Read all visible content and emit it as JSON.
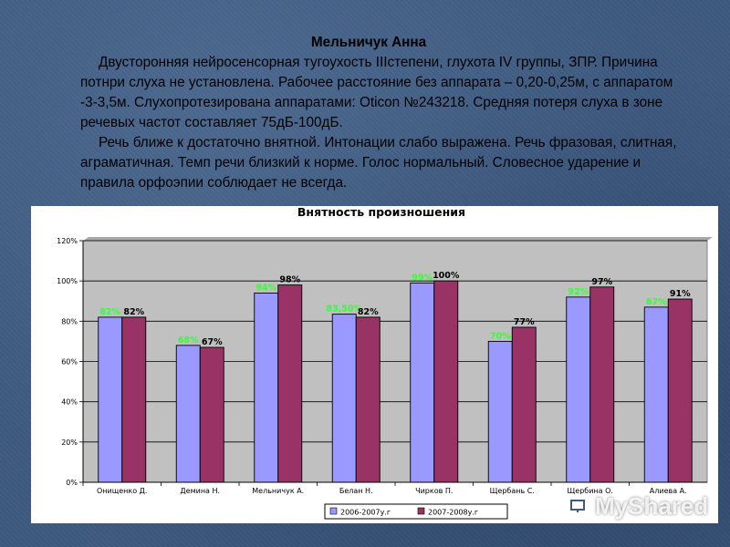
{
  "slide": {
    "name": "Мельничук Анна",
    "paragraphs": [
      "Двусторонняя нейросенсорная тугоухость IIIстепени, глухота IV группы, ЗПР. Причина потнри слуха не установлена. Рабочее расстояние без аппарата – 0,20-0,25м, с аппаратом -3-3,5м. Слухопротезирована аппаратами: Oticon №243218. Средняя потеря слуха в зоне речевых частот составляет 75дБ-100дБ.",
      "Речь ближе к достаточно внятной. Интонации слабо выражена. Речь фразовая, слитная, аграматичная. Темп речи близкий к норме. Голос нормальный. Словесное ударение и правила орфоэпии соблюдает не всегда."
    ]
  },
  "chart_data": {
    "type": "bar",
    "title": "Внятность произношения",
    "categories": [
      "Онищенко Д.",
      "Демина Н.",
      "Мельничук А.",
      "Белан Н.",
      "Чирков П.",
      "Щербань С.",
      "Щербина О.",
      "Алиева А."
    ],
    "series": [
      {
        "name": "2006-2007у.г",
        "values": [
          82,
          68,
          94,
          83.5,
          99,
          70,
          92,
          87
        ],
        "labels": [
          "82%",
          "68%",
          "94%",
          "83,50%",
          "99%",
          "70%",
          "92%",
          "87%"
        ],
        "color": "#9999ff",
        "label_color": "#33ff33"
      },
      {
        "name": "2007-2008у.г",
        "values": [
          82,
          67,
          98,
          82,
          100,
          77,
          97,
          91
        ],
        "labels": [
          "82%",
          "67%",
          "98%",
          "82%",
          "100%",
          "77%",
          "97%",
          "91%"
        ],
        "color": "#993366",
        "label_color": "#000000"
      }
    ],
    "ylim": [
      0,
      120
    ],
    "yticks": [
      0,
      20,
      40,
      60,
      80,
      100,
      120
    ],
    "ytick_labels": [
      "0%",
      "20%",
      "40%",
      "60%",
      "80%",
      "100%",
      "120%"
    ],
    "grid": true,
    "legend": "bottom"
  },
  "watermark": {
    "text": "MyShared"
  },
  "colors": {
    "background": "#3e5a80",
    "plot_area": "#c0c0c0",
    "grid": "#000000"
  }
}
